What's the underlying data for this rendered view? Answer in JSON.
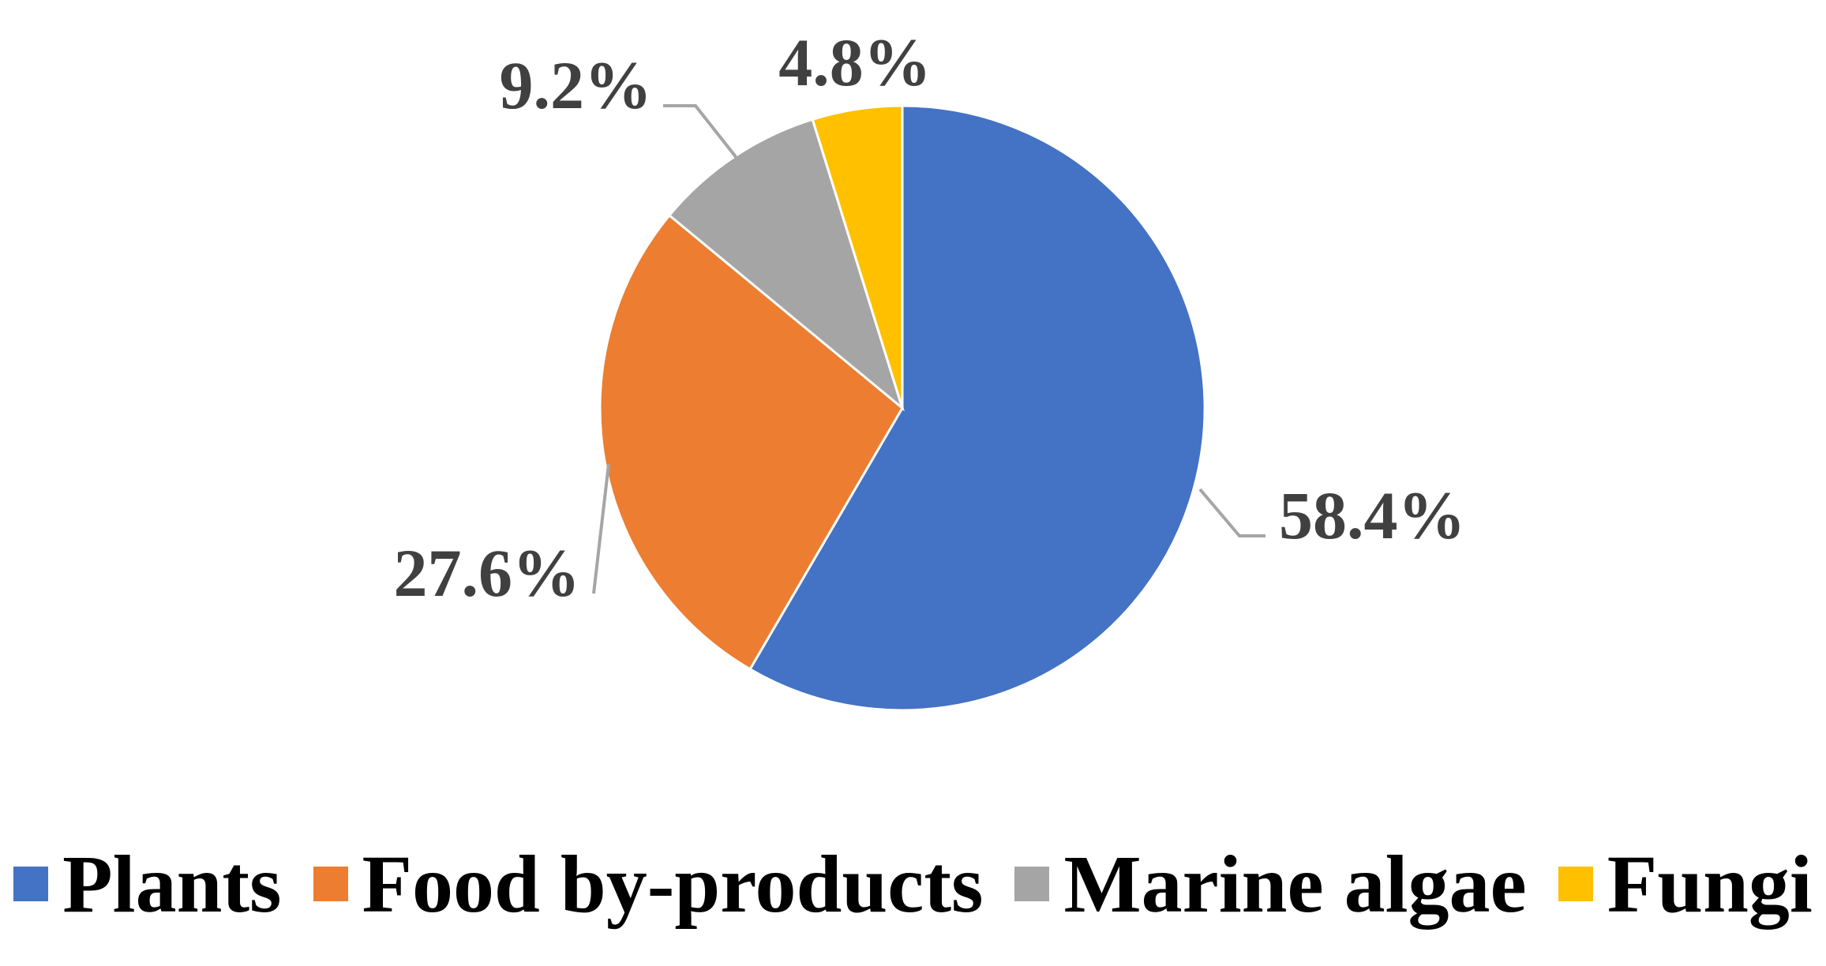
{
  "chart_data": {
    "type": "pie",
    "categories": [
      "Plants",
      "Food by-products",
      "Marine algae",
      "Fungi"
    ],
    "values": [
      58.4,
      27.6,
      9.2,
      4.8
    ],
    "labels": [
      "58.4%",
      "27.6%",
      "9.2%",
      "4.8%"
    ],
    "colors": [
      "#4472C4",
      "#ED7D31",
      "#A5A5A5",
      "#FFC000"
    ],
    "leader_line_color": "#A5A5A5",
    "label_color": "#404040",
    "start_angle": "12 o'clock",
    "direction": "clockwise",
    "legend_position": "bottom",
    "title": ""
  }
}
